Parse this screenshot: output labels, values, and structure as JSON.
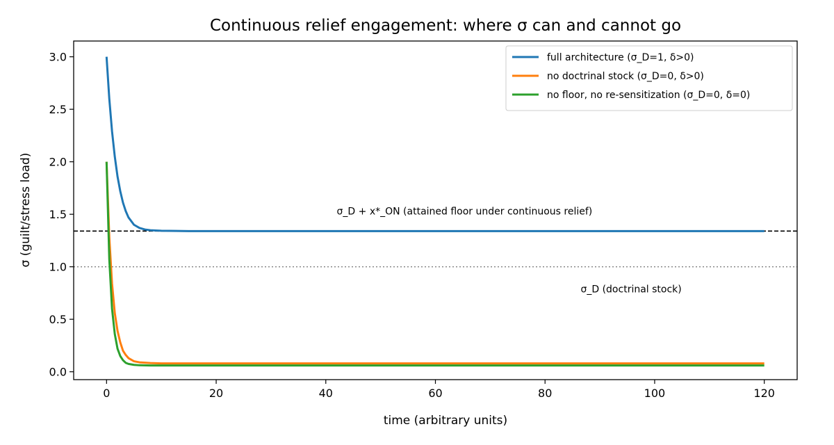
{
  "chart_data": {
    "type": "line",
    "title": "Continuous relief engagement: where σ can and cannot go",
    "xlabel": "time (arbitrary units)",
    "ylabel": "σ (guilt/stress load)",
    "xlim": [
      -6,
      126
    ],
    "ylim": [
      -0.075,
      3.15
    ],
    "x_ticks": [
      0,
      20,
      40,
      60,
      80,
      100,
      120
    ],
    "x_tick_labels": [
      "0",
      "20",
      "40",
      "60",
      "80",
      "100",
      "120"
    ],
    "y_ticks": [
      0.0,
      0.5,
      1.0,
      1.5,
      2.0,
      2.5,
      3.0
    ],
    "y_tick_labels": [
      "0.0",
      "0.5",
      "1.0",
      "1.5",
      "2.0",
      "2.5",
      "3.0"
    ],
    "grid": false,
    "legend_position": "top-right",
    "series": [
      {
        "name": "full architecture (σ_D=1, δ>0)",
        "color": "#1f77b4",
        "x": [
          0,
          0.5,
          1,
          1.5,
          2,
          2.5,
          3,
          3.5,
          4,
          5,
          6,
          7,
          8,
          10,
          15,
          20,
          40,
          60,
          80,
          100,
          120
        ],
        "y": [
          3.0,
          2.6,
          2.29,
          2.05,
          1.86,
          1.72,
          1.61,
          1.53,
          1.47,
          1.4,
          1.37,
          1.355,
          1.348,
          1.343,
          1.34,
          1.34,
          1.34,
          1.34,
          1.34,
          1.34,
          1.34
        ]
      },
      {
        "name": "no doctrinal stock (σ_D=0, δ>0)",
        "color": "#ff7f0e",
        "x": [
          0,
          0.5,
          1,
          1.5,
          2,
          2.5,
          3,
          3.5,
          4,
          5,
          6,
          8,
          10,
          20,
          40,
          60,
          80,
          100,
          120
        ],
        "y": [
          2.0,
          1.28,
          0.84,
          0.56,
          0.39,
          0.28,
          0.2,
          0.16,
          0.13,
          0.1,
          0.09,
          0.083,
          0.08,
          0.08,
          0.08,
          0.08,
          0.08,
          0.08,
          0.08
        ]
      },
      {
        "name": "no floor, no re-sensitization (σ_D=0, δ=0)",
        "color": "#2ca02c",
        "x": [
          0,
          0.5,
          1,
          1.5,
          2,
          2.5,
          3,
          3.5,
          4,
          5,
          6,
          8,
          10,
          20,
          40,
          60,
          80,
          100,
          120
        ],
        "y": [
          2.0,
          1.07,
          0.6,
          0.36,
          0.22,
          0.15,
          0.11,
          0.085,
          0.075,
          0.066,
          0.062,
          0.06,
          0.06,
          0.06,
          0.06,
          0.06,
          0.06,
          0.06,
          0.06
        ]
      }
    ],
    "reference_lines": [
      {
        "y": 1.34,
        "style": "dashed",
        "color": "#000000",
        "label": "σ_D + x*_ON (attained floor under continuous relief)"
      },
      {
        "y": 1.0,
        "style": "dotted",
        "color": "#808080",
        "label": "σ_D (doctrinal stock)"
      }
    ],
    "annotations": [
      {
        "text": "σ_D + x*_ON (attained floor under continuous relief)",
        "x": 42,
        "y": 1.53
      },
      {
        "text": "σ_D (doctrinal stock)",
        "x": 86.5,
        "y": 0.79
      }
    ]
  }
}
